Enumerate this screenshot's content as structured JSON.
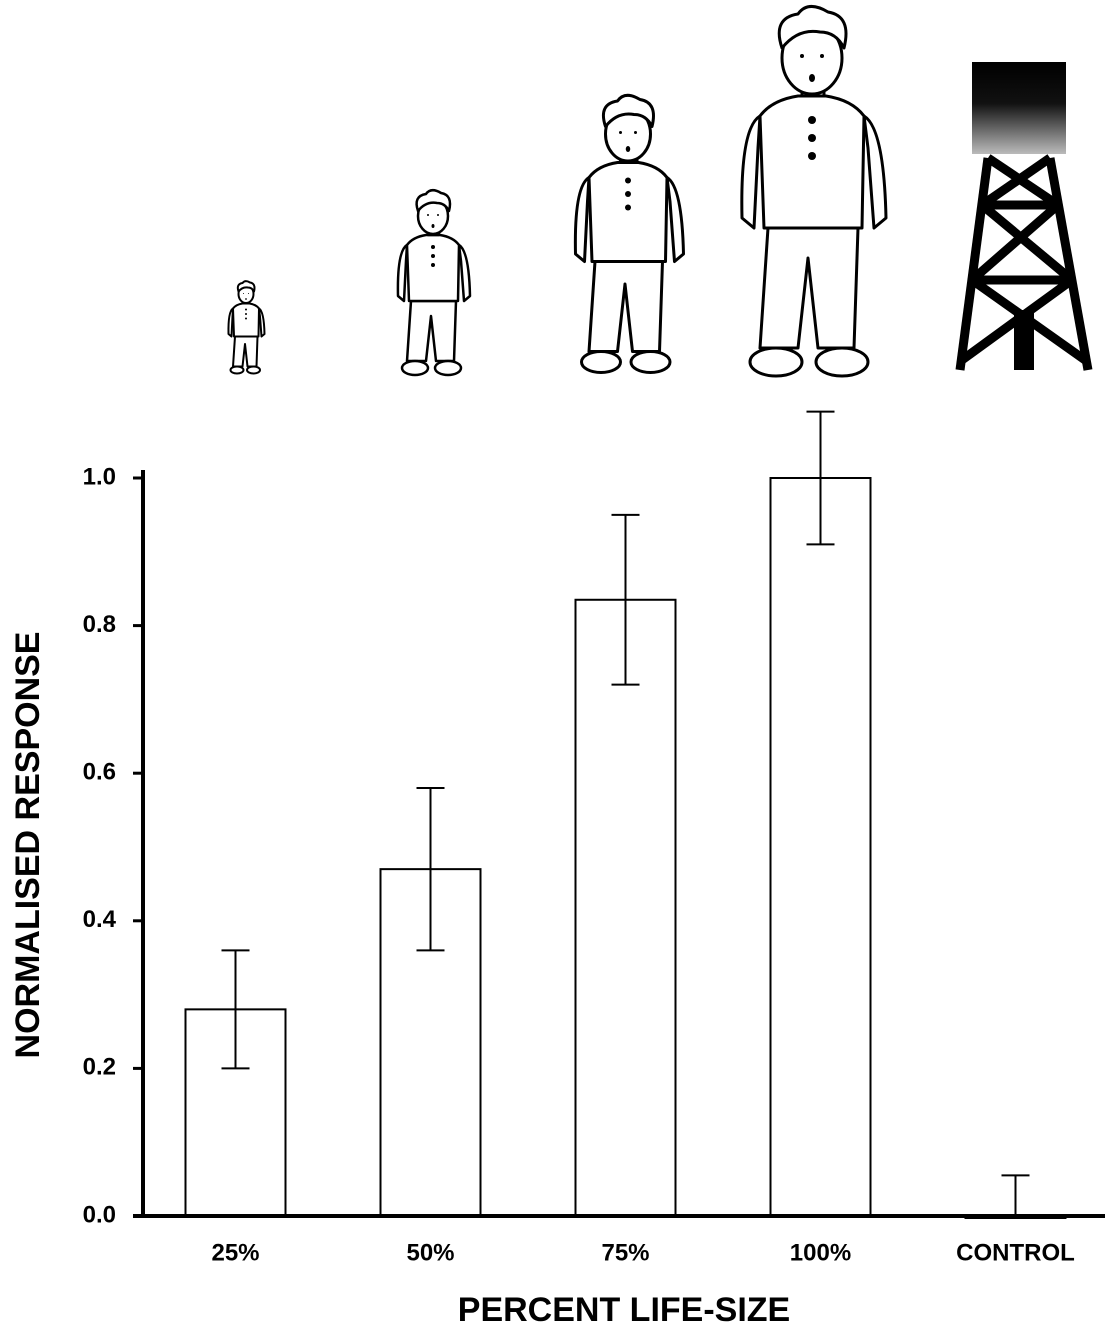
{
  "chart_data": {
    "type": "bar",
    "x_label": "PERCENT LIFE-SIZE",
    "y_label": "NORMALISED RESPONSE",
    "categories": [
      "25%",
      "50%",
      "75%",
      "100%",
      "CONTROL"
    ],
    "values": [
      0.28,
      0.47,
      0.835,
      1.0,
      0
    ],
    "errors": [
      0.08,
      0.11,
      0.115,
      0.09,
      0.055
    ],
    "color": "#ffffff",
    "ylim": [
      0,
      1.0
    ],
    "yticks": [
      {
        "value": 0,
        "label": "0.0"
      },
      0.2,
      0.4,
      0.6,
      0.8,
      {
        "value": 1.0,
        "label": "1.0"
      }
    ],
    "grid": false
  }
}
